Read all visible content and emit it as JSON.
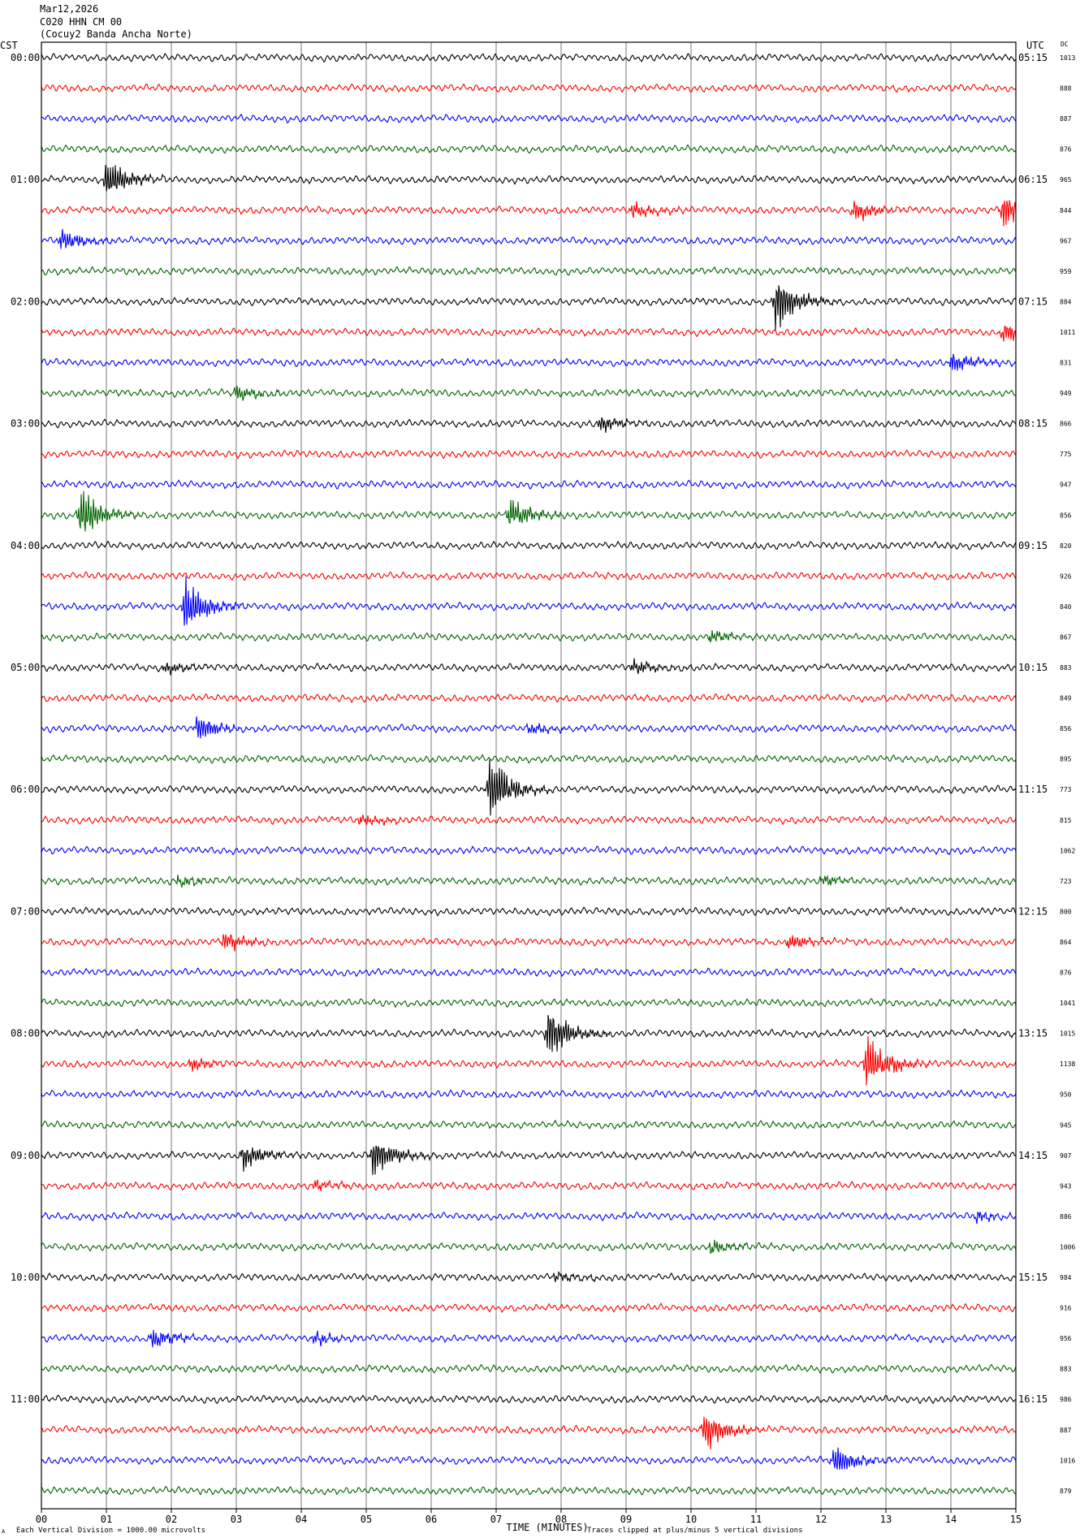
{
  "header": {
    "date": "Mar12,2026",
    "station": "C020 HHN CM 00",
    "network": "(Cocuy2 Banda Ancha Norte)"
  },
  "footer": {
    "scale_note": "Each Vertical Division = 1000.00 microvolts",
    "clip_note": "Traces clipped at plus/minus 5 vertical divisions",
    "corner_mark": "A"
  },
  "chart_data": {
    "type": "line",
    "title": "",
    "xlabel": "TIME (MINUTES)",
    "left_axis_label": "CST",
    "right_axis_label": "UTC",
    "dc_label": "DC",
    "xlim": [
      0,
      15
    ],
    "x_ticks": [
      "00",
      "01",
      "02",
      "03",
      "04",
      "05",
      "06",
      "07",
      "08",
      "09",
      "10",
      "11",
      "12",
      "13",
      "14",
      "15"
    ],
    "trace_colors": [
      "#000000",
      "#ff0000",
      "#0000ff",
      "#006400"
    ],
    "rows_per_hour": 4,
    "left_hour_labels": [
      "00:00",
      "01:00",
      "02:00",
      "03:00",
      "04:00",
      "05:00",
      "06:00",
      "07:00",
      "08:00",
      "09:00",
      "10:00",
      "11:00"
    ],
    "right_hour_labels": [
      "05:15",
      "06:15",
      "07:15",
      "08:15",
      "09:15",
      "10:15",
      "11:15",
      "12:15",
      "13:15",
      "14:15",
      "15:15",
      "16:15"
    ],
    "dc_values": [
      "1013",
      "888",
      "887",
      "876",
      "965",
      "844",
      "967",
      "959",
      "884",
      "1011",
      "831",
      "949",
      "866",
      "775",
      "947",
      "856",
      "820",
      "926",
      "840",
      "867",
      "883",
      "849",
      "856",
      "895",
      "773",
      "815",
      "1062",
      "723",
      "800",
      "864",
      "876",
      "1041",
      "1015",
      "1138",
      "950",
      "945",
      "907",
      "943",
      "886",
      "1006",
      "984",
      "916",
      "956",
      "883",
      "986",
      "887",
      "1016",
      "879"
    ],
    "events": [
      {
        "row": 4,
        "minute": 1.0,
        "amp": 4
      },
      {
        "row": 5,
        "minute": 9.1,
        "amp": 1.5
      },
      {
        "row": 5,
        "minute": 12.5,
        "amp": 2
      },
      {
        "row": 5,
        "minute": 14.8,
        "amp": 3
      },
      {
        "row": 6,
        "minute": 0.3,
        "amp": 2
      },
      {
        "row": 8,
        "minute": 11.3,
        "amp": 5
      },
      {
        "row": 9,
        "minute": 14.8,
        "amp": 2
      },
      {
        "row": 10,
        "minute": 14.0,
        "amp": 2
      },
      {
        "row": 11,
        "minute": 3.0,
        "amp": 1.5
      },
      {
        "row": 12,
        "minute": 8.6,
        "amp": 1.5
      },
      {
        "row": 15,
        "minute": 0.6,
        "amp": 5
      },
      {
        "row": 15,
        "minute": 7.2,
        "amp": 3
      },
      {
        "row": 18,
        "minute": 2.2,
        "amp": 5
      },
      {
        "row": 19,
        "minute": 10.3,
        "amp": 1.2
      },
      {
        "row": 20,
        "minute": 9.1,
        "amp": 1.5
      },
      {
        "row": 20,
        "minute": 1.9,
        "amp": 1.2
      },
      {
        "row": 22,
        "minute": 2.4,
        "amp": 2.5
      },
      {
        "row": 22,
        "minute": 7.5,
        "amp": 1.2
      },
      {
        "row": 24,
        "minute": 6.9,
        "amp": 6
      },
      {
        "row": 25,
        "minute": 4.9,
        "amp": 1.2
      },
      {
        "row": 27,
        "minute": 2.1,
        "amp": 1
      },
      {
        "row": 27,
        "minute": 12.0,
        "amp": 1
      },
      {
        "row": 29,
        "minute": 2.8,
        "amp": 2
      },
      {
        "row": 29,
        "minute": 11.5,
        "amp": 1.5
      },
      {
        "row": 32,
        "minute": 7.8,
        "amp": 5
      },
      {
        "row": 33,
        "minute": 2.3,
        "amp": 1.2
      },
      {
        "row": 33,
        "minute": 12.7,
        "amp": 5
      },
      {
        "row": 36,
        "minute": 3.1,
        "amp": 2.5
      },
      {
        "row": 36,
        "minute": 5.1,
        "amp": 4
      },
      {
        "row": 37,
        "minute": 4.2,
        "amp": 1
      },
      {
        "row": 38,
        "minute": 14.4,
        "amp": 1
      },
      {
        "row": 39,
        "minute": 10.3,
        "amp": 1.2
      },
      {
        "row": 40,
        "minute": 7.9,
        "amp": 1
      },
      {
        "row": 42,
        "minute": 1.7,
        "amp": 2
      },
      {
        "row": 42,
        "minute": 4.2,
        "amp": 1.2
      },
      {
        "row": 45,
        "minute": 10.2,
        "amp": 4
      },
      {
        "row": 46,
        "minute": 12.2,
        "amp": 3
      }
    ]
  }
}
